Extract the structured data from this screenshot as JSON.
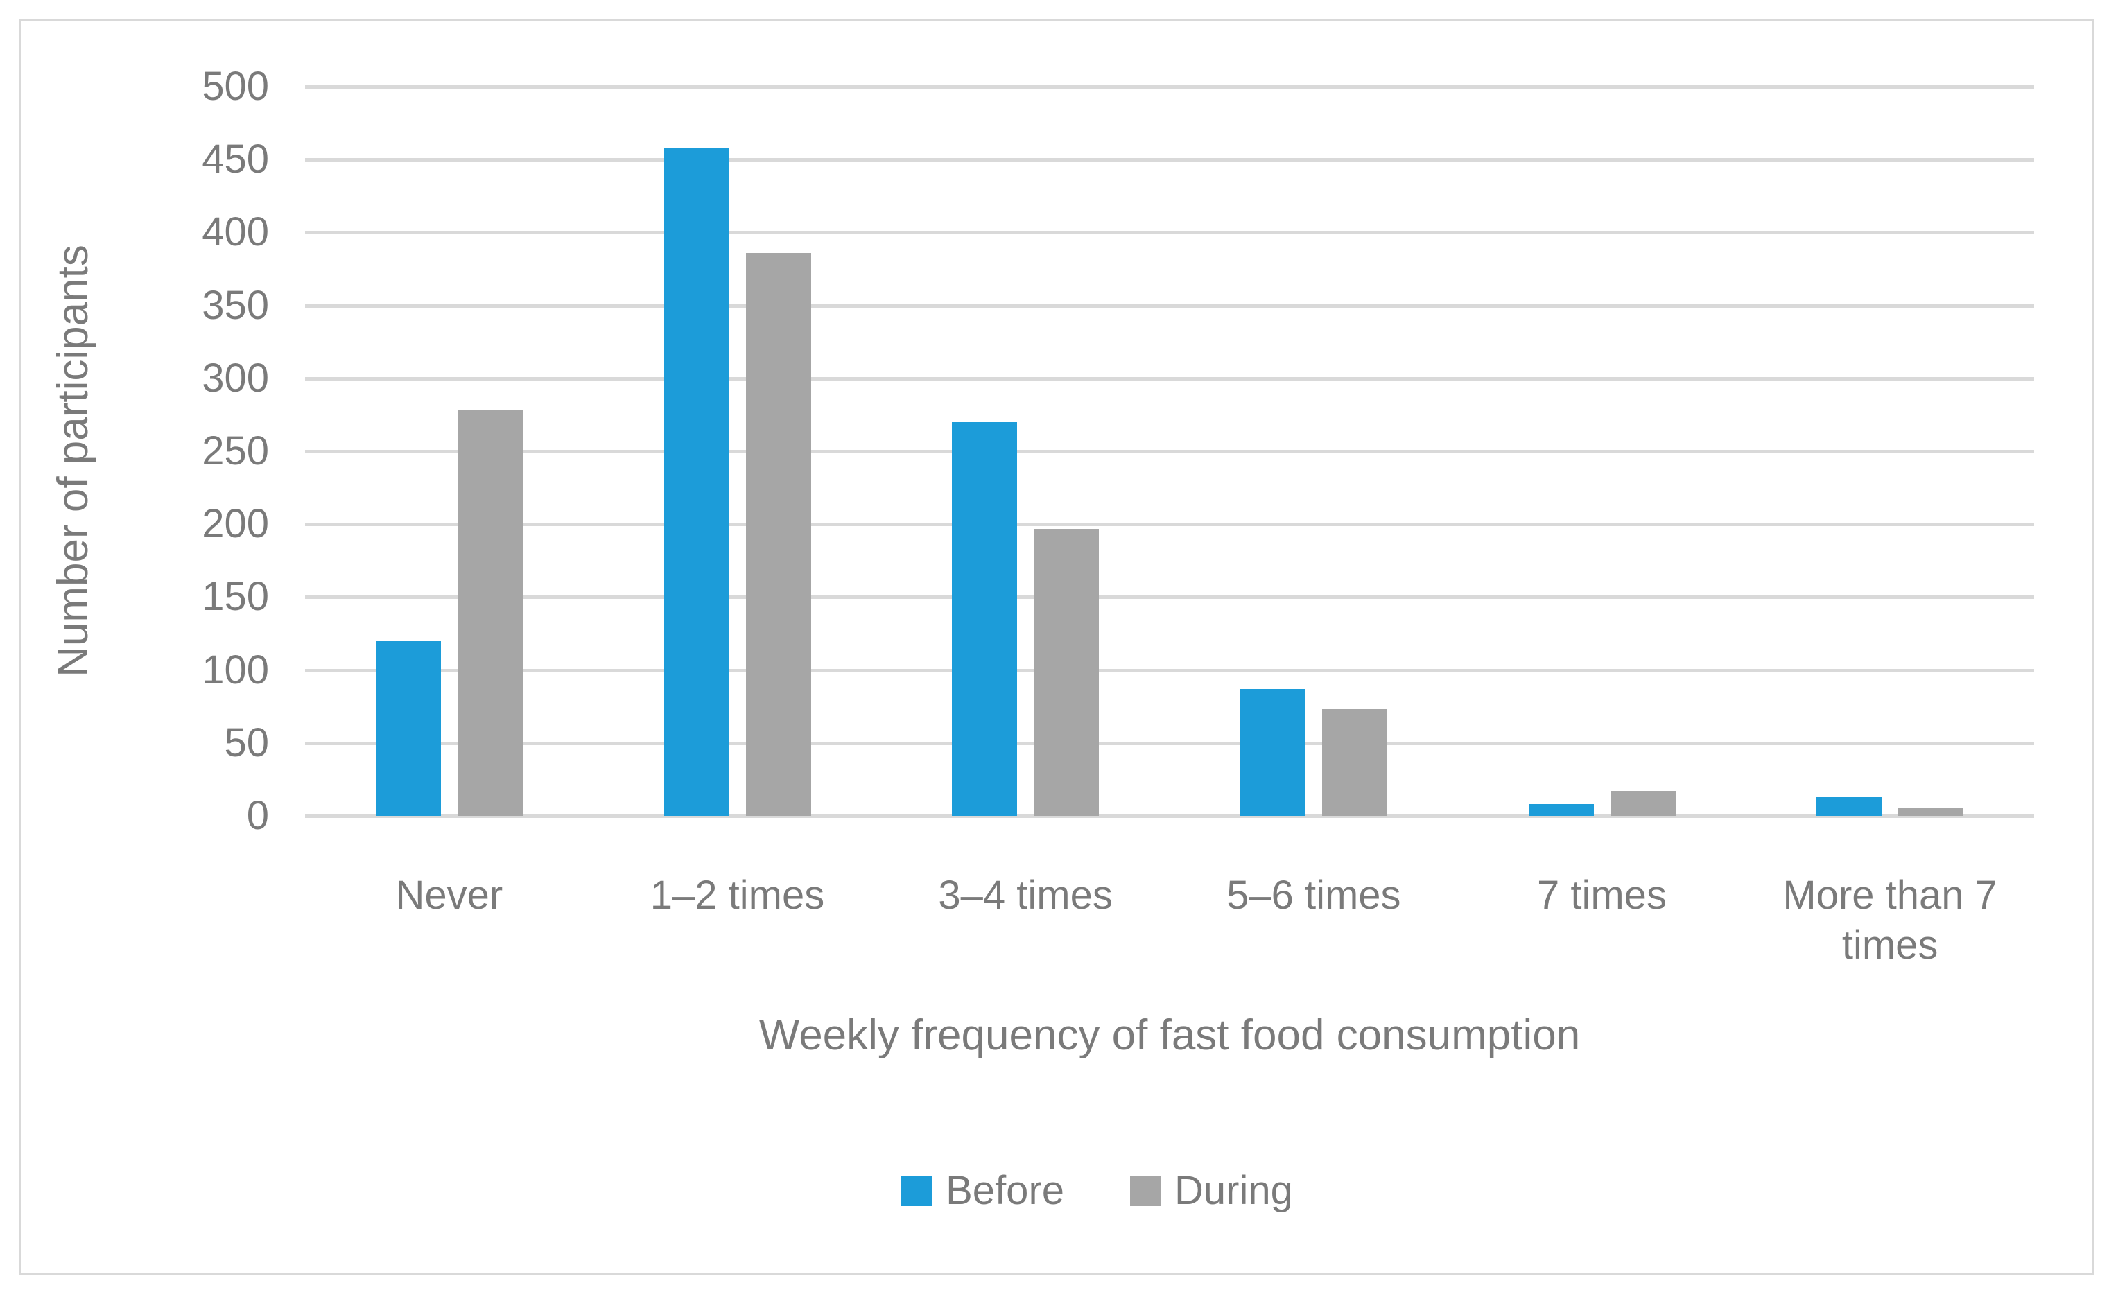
{
  "figure": {
    "background_color": "#ffffff",
    "border_color": "#d9d9d9"
  },
  "chart_data": {
    "type": "bar",
    "title": "",
    "xlabel": "Weekly frequency of fast food consumption",
    "ylabel": "Number of participants",
    "categories": [
      "Never",
      "1–2 times",
      "3–4 times",
      "5–6 times",
      "7 times",
      "More than 7 times"
    ],
    "series": [
      {
        "name": "Before",
        "color": "#1c9cd9",
        "values": [
          120,
          458,
          270,
          87,
          8,
          13
        ]
      },
      {
        "name": "During",
        "color": "#a6a6a6",
        "values": [
          278,
          386,
          197,
          73,
          17,
          5
        ]
      }
    ],
    "ylim": [
      0,
      500
    ],
    "ytick_step": 50,
    "yticks": [
      0,
      50,
      100,
      150,
      200,
      250,
      300,
      350,
      400,
      450,
      500
    ],
    "grid": "horizontal",
    "gridline_color": "#d9d9d9",
    "text_color": "#7a7a7a",
    "legend_position": "bottom",
    "legend_entries": [
      "Before",
      "During"
    ]
  }
}
